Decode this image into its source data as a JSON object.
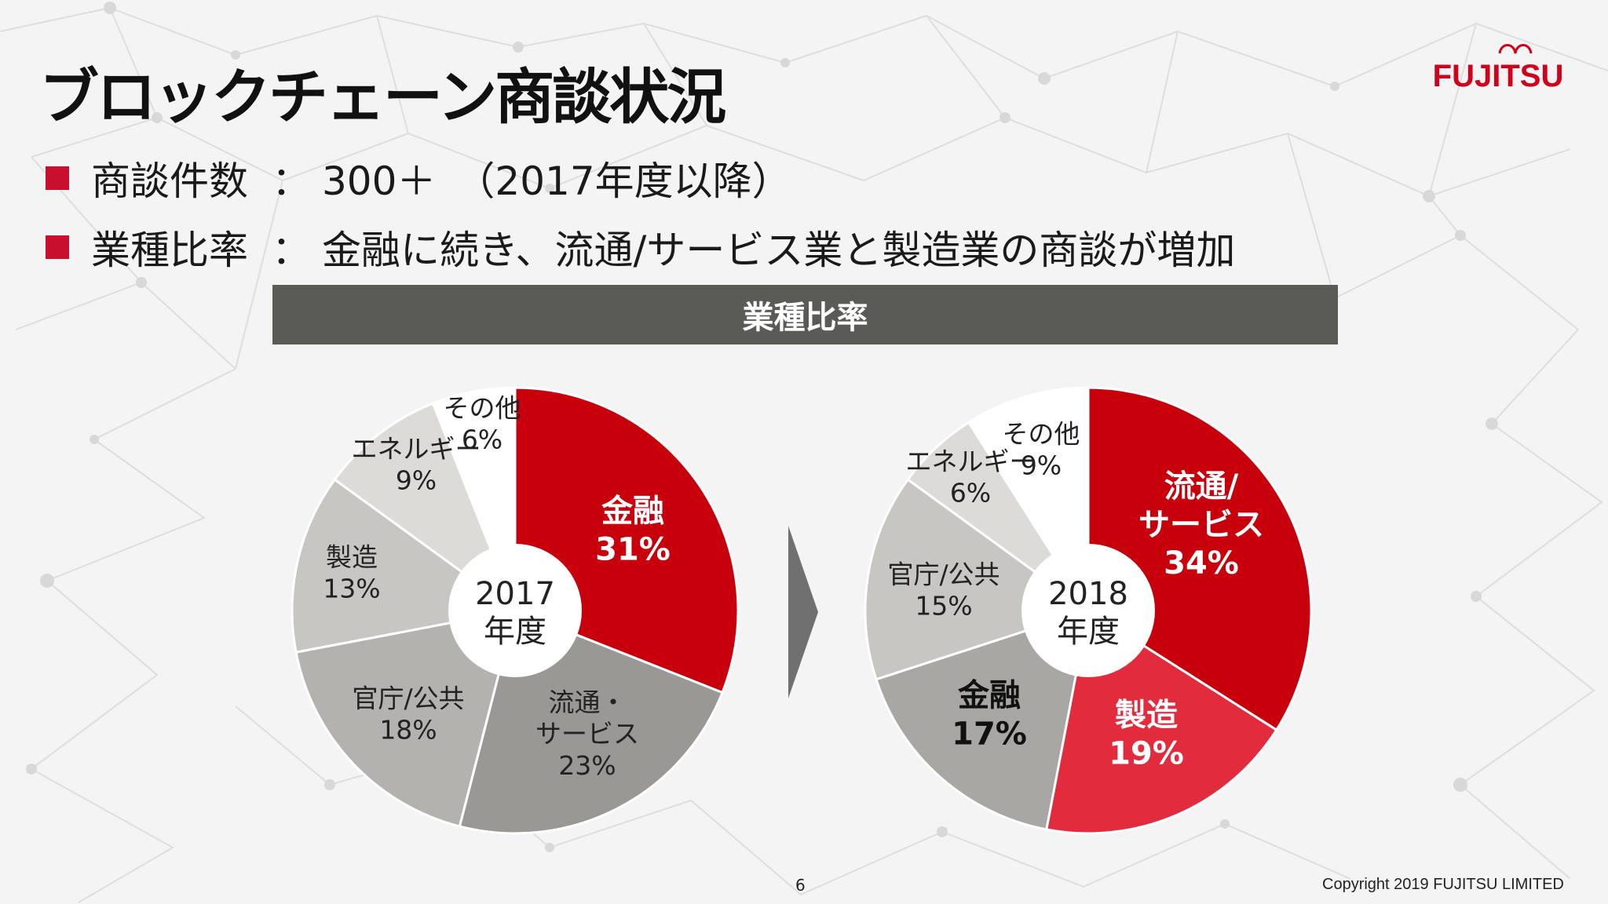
{
  "title": "ブロックチェーン商談状況",
  "logo_text": "FUJITSU",
  "bullets": [
    {
      "label": "商談件数",
      "sep": "：",
      "text": "300＋　（2017年度以降）"
    },
    {
      "label": "業種比率",
      "sep": "：",
      "text": "金融に続き、流通/サービス業と製造業の商談が増加"
    }
  ],
  "banner": "業種比率",
  "chart_data": [
    {
      "type": "pie",
      "title": "2017\n年度",
      "slices": [
        {
          "label": "金融",
          "value": 31,
          "display": "31%",
          "color": "#c8000b",
          "text_color": "#ffffff",
          "bold": true
        },
        {
          "label": "流通・\nサービス",
          "value": 23,
          "display": "23%",
          "color": "#9a9894",
          "text_color": "#222222",
          "bold": false
        },
        {
          "label": "官庁/公共",
          "value": 18,
          "display": "18%",
          "color": "#b4b2ae",
          "text_color": "#222222",
          "bold": false
        },
        {
          "label": "製造",
          "value": 13,
          "display": "13%",
          "color": "#c7c6c2",
          "text_color": "#222222",
          "bold": false
        },
        {
          "label": "エネルギー",
          "value": 9,
          "display": "9%",
          "color": "#dcdbd8",
          "text_color": "#222222",
          "bold": false
        },
        {
          "label": "その他",
          "value": 6,
          "display": "6%",
          "color": "#ffffff",
          "text_color": "#222222",
          "bold": false
        }
      ]
    },
    {
      "type": "pie",
      "title": "2018\n年度",
      "slices": [
        {
          "label": "流通/\nサービス",
          "value": 34,
          "display": "34%",
          "color": "#c8000b",
          "text_color": "#ffffff",
          "bold": true
        },
        {
          "label": "製造",
          "value": 19,
          "display": "19%",
          "color": "#e22b3d",
          "text_color": "#ffffff",
          "bold": true
        },
        {
          "label": "金融",
          "value": 17,
          "display": "17%",
          "color": "#a9a7a3",
          "text_color": "#111111",
          "bold": true
        },
        {
          "label": "官庁/公共",
          "value": 15,
          "display": "15%",
          "color": "#c7c6c2",
          "text_color": "#222222",
          "bold": false
        },
        {
          "label": "エネルギー",
          "value": 6,
          "display": "6%",
          "color": "#dcdbd8",
          "text_color": "#222222",
          "bold": false
        },
        {
          "label": "その他",
          "value": 9,
          "display": "9%",
          "color": "#ffffff",
          "text_color": "#222222",
          "bold": false
        }
      ]
    }
  ],
  "page_number": "6",
  "copyright": "Copyright 2019 FUJITSU LIMITED"
}
